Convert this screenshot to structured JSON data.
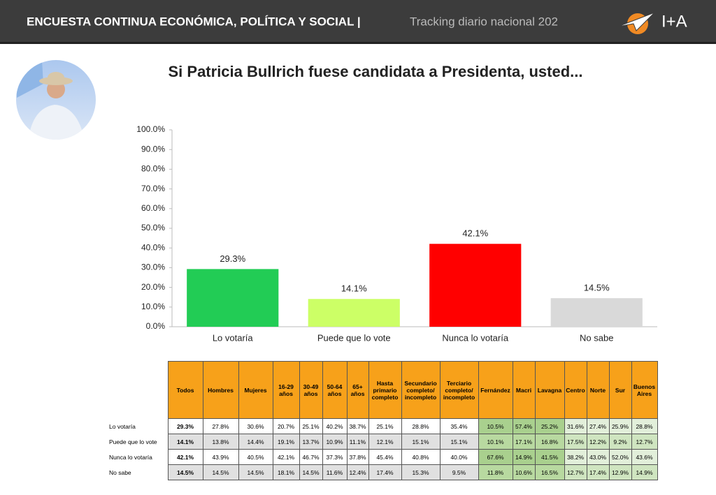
{
  "header": {
    "title": "ENCUESTA CONTINUA ECONÓMICA, POLÍTICA Y SOCIAL |",
    "subtitle": "Tracking diario nacional 202",
    "logo": "I+A"
  },
  "chart_data": {
    "type": "bar",
    "title": "Si Patricia Bullrich fuese candidata a Presidenta, usted...",
    "categories": [
      "Lo votaría",
      "Puede que lo vote",
      "Nunca lo votaría",
      "No sabe"
    ],
    "values": [
      29.3,
      14.1,
      42.1,
      14.5
    ],
    "value_labels": [
      "29.3%",
      "14.1%",
      "42.1%",
      "14.5%"
    ],
    "colors": [
      "#22cc55",
      "#ccff66",
      "#ff0000",
      "#d9d9d9"
    ],
    "ylim": [
      0,
      100
    ],
    "yticks": [
      {
        "value": 0,
        "label": "0.0%"
      },
      {
        "value": 10,
        "label": "10.0%"
      },
      {
        "value": 20,
        "label": "20.0%"
      },
      {
        "value": 30,
        "label": "30.0%"
      },
      {
        "value": 40,
        "label": "40.0%"
      },
      {
        "value": 50,
        "label": "50.0%"
      },
      {
        "value": 60,
        "label": "60.0%"
      },
      {
        "value": 70,
        "label": "70.0%"
      },
      {
        "value": 80,
        "label": "80.0%"
      },
      {
        "value": 90,
        "label": "90.0%"
      },
      {
        "value": 100,
        "label": "100.0%"
      }
    ],
    "grid": false
  },
  "table": {
    "columns": [
      "Todos",
      "Hombres",
      "Mujeres",
      "16-29 años",
      "30-49 años",
      "50-64 años",
      "65+ años",
      "Hasta primario completo",
      "Secundario completo/ incompleto",
      "Terciario completo/ incompleto",
      "Fernández",
      "Macri",
      "Lavagna",
      "Centro",
      "Norte",
      "Sur",
      "Buenos Aires"
    ],
    "rows": [
      {
        "label": "Lo votaría",
        "cells": [
          "29.3%",
          "27.8%",
          "30.6%",
          "20.7%",
          "25.1%",
          "40.2%",
          "38.7%",
          "25.1%",
          "28.8%",
          "35.4%",
          "10.5%",
          "57.4%",
          "25.2%",
          "31.6%",
          "27.4%",
          "25.9%",
          "28.8%"
        ]
      },
      {
        "label": "Puede que lo vote",
        "cells": [
          "14.1%",
          "13.8%",
          "14.4%",
          "19.1%",
          "13.7%",
          "10.9%",
          "11.1%",
          "12.1%",
          "15.1%",
          "15.1%",
          "10.1%",
          "17.1%",
          "16.8%",
          "17.5%",
          "12.2%",
          "9.2%",
          "12.7%"
        ]
      },
      {
        "label": "Nunca lo votaría",
        "cells": [
          "42.1%",
          "43.9%",
          "40.5%",
          "42.1%",
          "46.7%",
          "37.3%",
          "37.8%",
          "45.4%",
          "40.8%",
          "40.0%",
          "67.6%",
          "14.9%",
          "41.5%",
          "38.2%",
          "43.0%",
          "52.0%",
          "43.6%"
        ]
      },
      {
        "label": "No sabe",
        "cells": [
          "14.5%",
          "14.5%",
          "14.5%",
          "18.1%",
          "14.5%",
          "11.6%",
          "12.4%",
          "17.4%",
          "15.3%",
          "9.5%",
          "11.8%",
          "10.6%",
          "16.5%",
          "12.7%",
          "17.4%",
          "12.9%",
          "14.9%"
        ]
      }
    ]
  }
}
